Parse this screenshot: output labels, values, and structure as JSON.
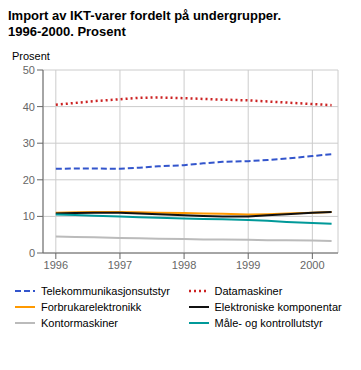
{
  "chart_data": {
    "type": "line",
    "title": "Import av IKT-varer fordelt på undergrupper.",
    "subtitle": "1996-2000. Prosent",
    "ylabel": "Prosent",
    "x": [
      1996.0,
      1996.3,
      1996.6,
      1997.0,
      1997.3,
      1997.6,
      1998.0,
      1998.3,
      1998.6,
      1999.0,
      1999.3,
      1999.6,
      2000.0,
      2000.3
    ],
    "xlim": [
      1995.8,
      2000.4
    ],
    "xticks": [
      1996,
      1997,
      1998,
      1999,
      2000
    ],
    "ylim": [
      0,
      50
    ],
    "yticks": [
      0,
      10,
      20,
      30,
      40,
      50
    ],
    "grid": true,
    "legend": "bottom",
    "series": [
      {
        "name": "Telekommunikasjonsutstyr",
        "color": "#3355cc",
        "line_style": "dashed",
        "values": [
          23.0,
          23.1,
          23.1,
          23.0,
          23.3,
          23.7,
          24.0,
          24.5,
          24.9,
          25.1,
          25.4,
          25.8,
          26.5,
          27.0
        ]
      },
      {
        "name": "Datamaskiner",
        "color": "#cc2222",
        "line_style": "dotted",
        "values": [
          40.5,
          41.0,
          41.5,
          42.0,
          42.4,
          42.5,
          42.3,
          42.1,
          41.9,
          41.7,
          41.4,
          41.1,
          40.7,
          40.4
        ]
      },
      {
        "name": "Forbrukarelektronikk",
        "color": "#ff9900",
        "line_style": "solid",
        "values": [
          11.0,
          11.1,
          11.2,
          11.2,
          11.1,
          11.0,
          10.9,
          10.8,
          10.7,
          10.5,
          10.6,
          10.8,
          11.0,
          11.2
        ]
      },
      {
        "name": "Elektroniske komponentar",
        "color": "#111111",
        "line_style": "solid",
        "values": [
          10.8,
          10.9,
          11.0,
          11.0,
          10.8,
          10.6,
          10.3,
          10.1,
          10.0,
          10.0,
          10.3,
          10.6,
          11.0,
          11.2
        ]
      },
      {
        "name": "Kontormaskiner",
        "color": "#bbbbbb",
        "line_style": "solid",
        "values": [
          4.5,
          4.4,
          4.3,
          4.1,
          4.0,
          3.9,
          3.8,
          3.7,
          3.7,
          3.6,
          3.5,
          3.5,
          3.4,
          3.3
        ]
      },
      {
        "name": "Måle- og kontrollutstyr",
        "color": "#009999",
        "line_style": "solid",
        "values": [
          10.5,
          10.4,
          10.2,
          10.0,
          9.8,
          9.6,
          9.4,
          9.3,
          9.2,
          9.0,
          8.8,
          8.5,
          8.2,
          8.0
        ]
      }
    ]
  }
}
